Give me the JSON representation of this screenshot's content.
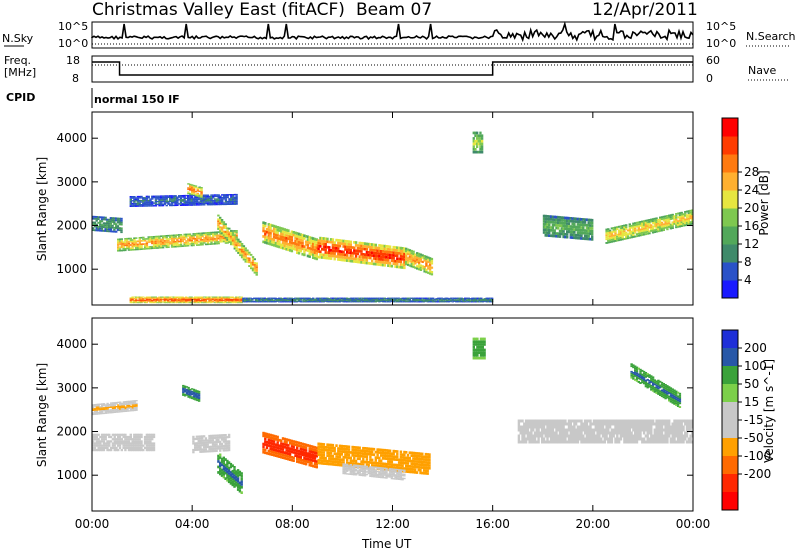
{
  "header": {
    "station": "Christmas Valley East (fitACF)",
    "beam": "Beam 07",
    "date": "12/Apr/2011"
  },
  "sky_panel": {
    "left_label": "N.Sky",
    "right_label": "N.Search",
    "left_ticks": [
      "10^5",
      "10^0"
    ],
    "right_ticks": [
      "10^5",
      "10^0"
    ]
  },
  "freq_panel": {
    "left_label_1": "Freq.",
    "left_label_2": "[MHz]",
    "left_ticks": [
      "18",
      "8"
    ],
    "right_label": "Nave",
    "right_ticks": [
      "60",
      "0"
    ],
    "cpid_label": "CPID",
    "cpid_value": "normal 150 IF"
  },
  "colors": {
    "power_scale": [
      "#1a1aff",
      "#2a52c8",
      "#3f8a6a",
      "#52a85a",
      "#7ec850",
      "#e6e640",
      "#ffb030",
      "#ff7a10",
      "#ff3c00",
      "#ff0000"
    ],
    "velocity_scale": [
      "#1e2fd8",
      "#2858a8",
      "#3aa23a",
      "#7cd04a",
      "#c8c8c8",
      "#c8c8c8",
      "#ffa000",
      "#ff6a00",
      "#ff2800",
      "#ff0000"
    ]
  },
  "chart_data": [
    {
      "type": "heatmap",
      "title": "",
      "xlabel": "",
      "ylabel": "Slant Range [km]",
      "xlim": [
        0,
        24
      ],
      "ylim": [
        180,
        4600
      ],
      "x_ticks": [
        "00:00",
        "04:00",
        "08:00",
        "12:00",
        "16:00",
        "20:00",
        "00:00"
      ],
      "y_ticks": [
        1000,
        2000,
        3000,
        4000
      ],
      "colorbar": {
        "label": "Power [dB]",
        "ticks": [
          "4",
          "8",
          "12",
          "16",
          "20",
          "24",
          "28"
        ],
        "range": [
          0,
          30
        ]
      },
      "bands": [
        {
          "t_start": 0.0,
          "t_end": 1.2,
          "r_center": [
            2050,
            2000
          ],
          "r_width": 350,
          "value": 10
        },
        {
          "t_start": 1.0,
          "t_end": 5.8,
          "r_center": [
            1550,
            1750
          ],
          "r_width": 300,
          "value": 22
        },
        {
          "t_start": 1.5,
          "t_end": 5.8,
          "r_center": [
            2550,
            2600
          ],
          "r_width": 250,
          "value": 6
        },
        {
          "t_start": 3.8,
          "t_end": 4.4,
          "r_center": [
            2850,
            2750
          ],
          "r_width": 250,
          "value": 24
        },
        {
          "t_start": 5.0,
          "t_end": 6.6,
          "r_center": [
            2100,
            1000
          ],
          "r_width": 350,
          "value": 22
        },
        {
          "t_start": 6.8,
          "t_end": 9.0,
          "r_center": [
            1850,
            1450
          ],
          "r_width": 500,
          "value": 24
        },
        {
          "t_start": 9.0,
          "t_end": 12.5,
          "r_center": [
            1500,
            1250
          ],
          "r_width": 500,
          "value": 28
        },
        {
          "t_start": 12.5,
          "t_end": 13.6,
          "r_center": [
            1300,
            1050
          ],
          "r_width": 400,
          "value": 22
        },
        {
          "t_start": 15.2,
          "t_end": 15.6,
          "r_center": [
            3900,
            3900
          ],
          "r_width": 500,
          "value": 16
        },
        {
          "t_start": 18.0,
          "t_end": 20.0,
          "r_center": [
            2000,
            1900
          ],
          "r_width": 500,
          "value": 12
        },
        {
          "t_start": 20.5,
          "t_end": 24.0,
          "r_center": [
            1750,
            2200
          ],
          "r_width": 350,
          "value": 20
        },
        {
          "t_start": 1.5,
          "t_end": 6.0,
          "r_center": [
            300,
            300
          ],
          "r_width": 150,
          "value": 26
        },
        {
          "t_start": 6.0,
          "t_end": 16.0,
          "r_center": [
            300,
            300
          ],
          "r_width": 100,
          "value": 8
        }
      ]
    },
    {
      "type": "heatmap",
      "title": "",
      "xlabel": "Time UT",
      "ylabel": "Slant Range [km]",
      "xlim": [
        0,
        24
      ],
      "ylim": [
        180,
        4600
      ],
      "x_ticks": [
        "00:00",
        "04:00",
        "08:00",
        "12:00",
        "16:00",
        "20:00",
        "00:00"
      ],
      "y_ticks": [
        1000,
        2000,
        3000,
        4000
      ],
      "colorbar": {
        "label": "Velocity [m s^-1]",
        "ticks": [
          "200",
          "100",
          "50",
          "15",
          "-15",
          "-50",
          "-100",
          "-200"
        ],
        "range": [
          -250,
          250
        ]
      },
      "bands": [
        {
          "t_start": 0.0,
          "t_end": 2.5,
          "r_center": [
            1750,
            1750
          ],
          "r_width": 400,
          "value": 0
        },
        {
          "t_start": 0.0,
          "t_end": 1.8,
          "r_center": [
            2500,
            2600
          ],
          "r_width": 250,
          "value": -60
        },
        {
          "t_start": 3.6,
          "t_end": 4.3,
          "r_center": [
            2950,
            2800
          ],
          "r_width": 250,
          "value": 200
        },
        {
          "t_start": 4.0,
          "t_end": 5.5,
          "r_center": [
            1700,
            1750
          ],
          "r_width": 400,
          "value": 0
        },
        {
          "t_start": 5.0,
          "t_end": 6.0,
          "r_center": [
            1300,
            800
          ],
          "r_width": 500,
          "value": 180
        },
        {
          "t_start": 6.8,
          "t_end": 9.0,
          "r_center": [
            1750,
            1400
          ],
          "r_width": 500,
          "value": -190
        },
        {
          "t_start": 9.0,
          "t_end": 13.5,
          "r_center": [
            1500,
            1250
          ],
          "r_width": 500,
          "value": -100
        },
        {
          "t_start": 10.0,
          "t_end": 12.5,
          "r_center": [
            1150,
            1000
          ],
          "r_width": 250,
          "value": 0
        },
        {
          "t_start": 15.2,
          "t_end": 15.7,
          "r_center": [
            3900,
            3900
          ],
          "r_width": 500,
          "value": 150
        },
        {
          "t_start": 17.0,
          "t_end": 24.0,
          "r_center": [
            2000,
            2000
          ],
          "r_width": 550,
          "value": 0
        },
        {
          "t_start": 21.5,
          "t_end": 23.5,
          "r_center": [
            3400,
            2700
          ],
          "r_width": 350,
          "value": 180
        }
      ]
    }
  ]
}
